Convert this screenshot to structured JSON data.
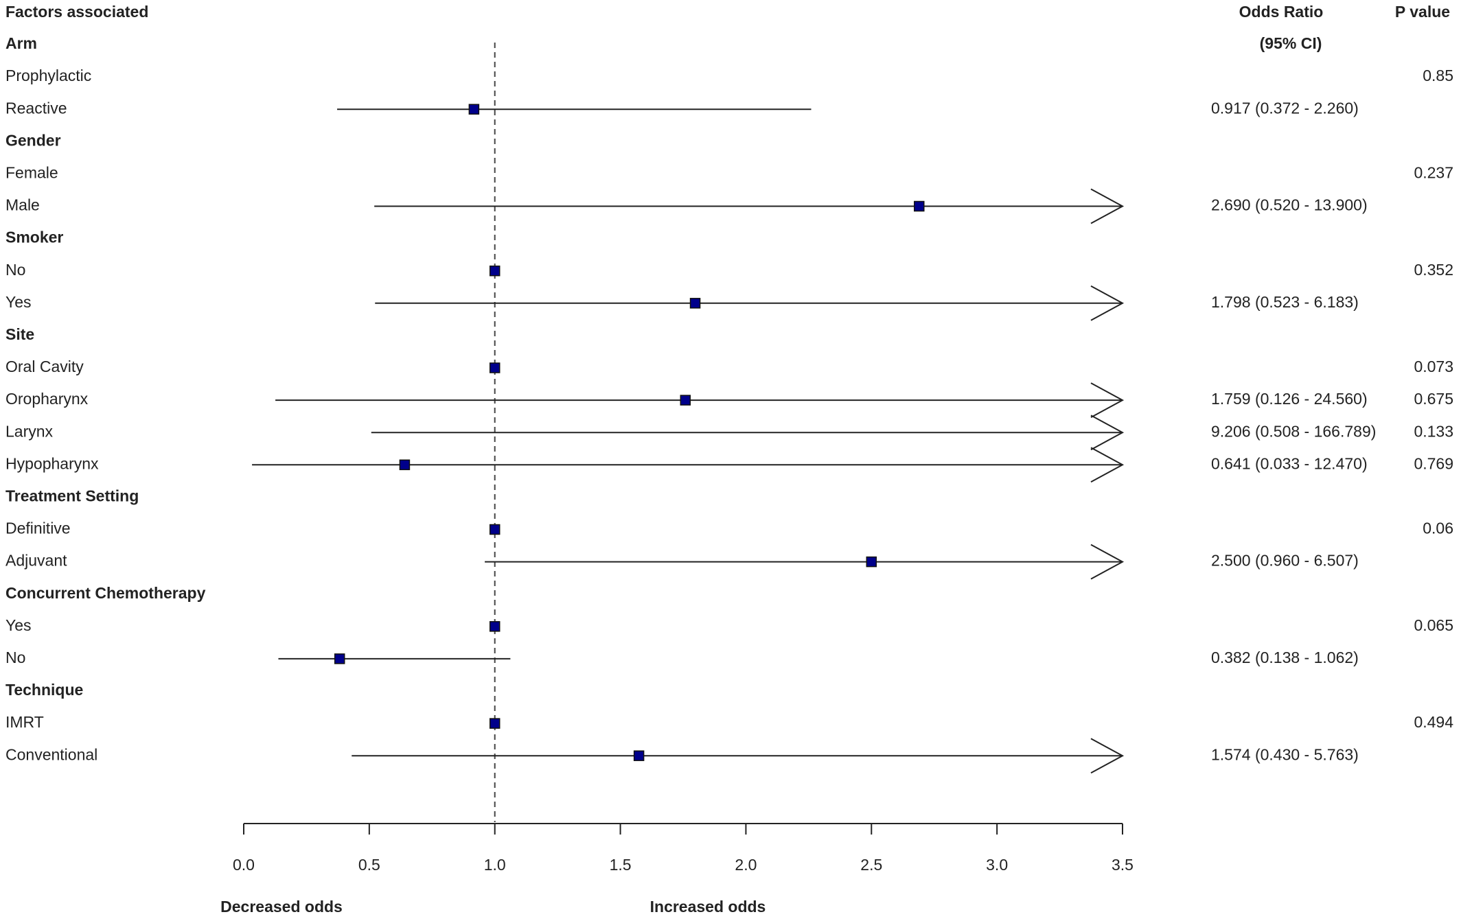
{
  "chart_data": {
    "type": "forest",
    "column_titles": {
      "factors": "Factors associated",
      "odds_ratio": "Odds Ratio",
      "ci": "(95% CI)",
      "p_value": "P value"
    },
    "xlabel_left": "Decreased odds",
    "xlabel_right": "Increased odds",
    "xlim": [
      0,
      3.5
    ],
    "xticks": [
      {
        "value": 0,
        "label": "0.0"
      },
      0.5,
      {
        "value": 1,
        "label": "1.0"
      },
      1.5,
      {
        "value": 2,
        "label": "2.0"
      },
      2.5,
      {
        "value": 3,
        "label": "3.0"
      },
      3.5
    ],
    "reference_line": 1,
    "color": "#00008b",
    "rows": [
      {
        "label": "Arm",
        "header": true
      },
      {
        "label": "Prophylactic",
        "p": 0.85
      },
      {
        "label": "Reactive",
        "estimate": 0.917,
        "lower": 0.372,
        "upper": 2.26,
        "or_label": "0.917 (0.372 - 2.260)"
      },
      {
        "label": "Gender",
        "header": true
      },
      {
        "label": "Female",
        "p": 0.237
      },
      {
        "label": "Male",
        "estimate": 2.69,
        "lower": 0.52,
        "upper": 13.9,
        "or_label": "2.690 (0.520 - 13.900)"
      },
      {
        "label": "Smoker",
        "header": true
      },
      {
        "label": "No",
        "estimate": 1,
        "p": 0.352
      },
      {
        "label": "Yes",
        "estimate": 1.798,
        "lower": 0.523,
        "upper": 6.183,
        "or_label": "1.798 (0.523 - 6.183)"
      },
      {
        "label": "Site",
        "header": true
      },
      {
        "label": "Oral Cavity",
        "estimate": 1,
        "p": 0.073
      },
      {
        "label": "Oropharynx",
        "estimate": 1.759,
        "lower": 0.126,
        "upper": 24.56,
        "or_label": "1.759 (0.126 - 24.560)",
        "p": 0.675
      },
      {
        "label": "Larynx",
        "estimate": 9.206,
        "lower": 0.508,
        "upper": 166.789,
        "or_label": "9.206 (0.508 - 166.789)",
        "p": 0.133
      },
      {
        "label": "Hypopharynx",
        "estimate": 0.641,
        "lower": 0.033,
        "upper": 12.47,
        "or_label": "0.641 (0.033 - 12.470)",
        "p": 0.769
      },
      {
        "label": "Treatment Setting",
        "header": true
      },
      {
        "label": "Definitive",
        "estimate": 1,
        "p": 0.06
      },
      {
        "label": "Adjuvant",
        "estimate": 2.5,
        "lower": 0.96,
        "upper": 6.507,
        "or_label": "2.500 (0.960 - 6.507)"
      },
      {
        "label": "Concurrent Chemotherapy",
        "header": true
      },
      {
        "label": "Yes",
        "estimate": 1,
        "p": 0.065
      },
      {
        "label": "No",
        "estimate": 0.382,
        "lower": 0.138,
        "upper": 1.062,
        "or_label": "0.382 (0.138 - 1.062)"
      },
      {
        "label": "Technique",
        "header": true
      },
      {
        "label": "IMRT",
        "estimate": 1,
        "p": 0.494
      },
      {
        "label": "Conventional",
        "estimate": 1.574,
        "lower": 0.43,
        "upper": 5.763,
        "or_label": "1.574 (0.430 - 5.763)"
      }
    ]
  }
}
